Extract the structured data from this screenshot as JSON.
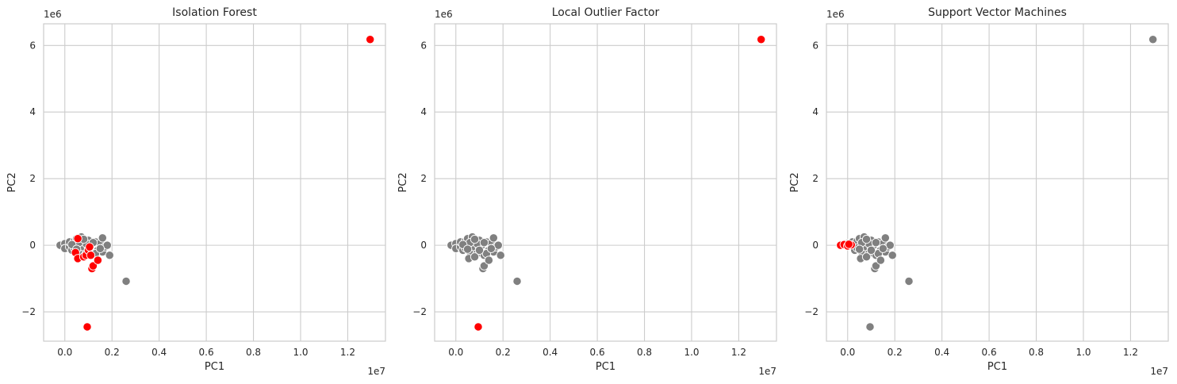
{
  "chart_data": [
    {
      "type": "scatter",
      "title": "Isolation Forest",
      "xlabel": "PC1",
      "ylabel": "PC2",
      "x_offset_label": "1e7",
      "y_offset_label": "1e6",
      "xlim": [
        -0.09,
        1.36
      ],
      "ylim": [
        -2.88,
        6.65
      ],
      "xticks": [
        0.0,
        0.2,
        0.4,
        0.6,
        0.8,
        1.0,
        1.2
      ],
      "xtick_labels": [
        "0.0",
        "0.2",
        "0.4",
        "0.6",
        "0.8",
        "1.0",
        "1.2"
      ],
      "yticks": [
        -2,
        0,
        2,
        4,
        6
      ],
      "ytick_labels": [
        "−2",
        "0",
        "2",
        "4",
        "6"
      ],
      "grid": true,
      "series": [
        {
          "color": "#808080",
          "points": [
            [
              -0.02,
              0.0
            ],
            [
              0.0,
              0.05
            ],
            [
              0.0,
              -0.1
            ],
            [
              0.02,
              -0.05
            ],
            [
              0.02,
              0.1
            ],
            [
              0.03,
              -0.15
            ],
            [
              0.04,
              0.12
            ],
            [
              0.04,
              -0.08
            ],
            [
              0.05,
              0.2
            ],
            [
              0.06,
              -0.2
            ],
            [
              0.07,
              0.0
            ],
            [
              0.07,
              0.25
            ],
            [
              0.08,
              -0.05
            ],
            [
              0.09,
              -0.25
            ],
            [
              0.1,
              0.15
            ],
            [
              0.1,
              -0.1
            ],
            [
              0.11,
              0.0
            ],
            [
              0.12,
              -0.3
            ],
            [
              0.13,
              0.1
            ],
            [
              0.14,
              -0.15
            ],
            [
              0.15,
              0.05
            ],
            [
              0.16,
              -0.2
            ],
            [
              0.17,
              -0.05
            ],
            [
              0.18,
              0.0
            ],
            [
              0.09,
              0.05
            ],
            [
              0.06,
              0.08
            ],
            [
              0.03,
              0.02
            ],
            [
              0.05,
              -0.12
            ],
            [
              0.08,
              0.18
            ],
            [
              0.12,
              0.08
            ],
            [
              0.13,
              -0.25
            ],
            [
              0.15,
              -0.1
            ],
            [
              0.19,
              -0.3
            ],
            [
              0.16,
              0.22
            ],
            [
              0.26,
              -1.08
            ]
          ]
        },
        {
          "color": "#ff0000",
          "points": [
            [
              1.295,
              6.18
            ],
            [
              0.055,
              0.2
            ],
            [
              0.045,
              -0.22
            ],
            [
              0.055,
              -0.4
            ],
            [
              0.08,
              -0.35
            ],
            [
              0.09,
              -0.3
            ],
            [
              0.1,
              -0.15
            ],
            [
              0.105,
              -0.05
            ],
            [
              0.11,
              -0.3
            ],
            [
              0.115,
              -0.7
            ],
            [
              0.12,
              -0.62
            ],
            [
              0.14,
              -0.45
            ],
            [
              0.095,
              -2.45
            ]
          ]
        }
      ]
    },
    {
      "type": "scatter",
      "title": "Local Outlier Factor",
      "xlabel": "PC1",
      "ylabel": "PC2",
      "x_offset_label": "1e7",
      "y_offset_label": "1e6",
      "xlim": [
        -0.09,
        1.36
      ],
      "ylim": [
        -2.88,
        6.65
      ],
      "xticks": [
        0.0,
        0.2,
        0.4,
        0.6,
        0.8,
        1.0,
        1.2
      ],
      "xtick_labels": [
        "0.0",
        "0.2",
        "0.4",
        "0.6",
        "0.8",
        "1.0",
        "1.2"
      ],
      "yticks": [
        -2,
        0,
        2,
        4,
        6
      ],
      "ytick_labels": [
        "−2",
        "0",
        "2",
        "4",
        "6"
      ],
      "grid": true,
      "series": [
        {
          "color": "#808080",
          "points": [
            [
              -0.02,
              0.0
            ],
            [
              0.0,
              0.05
            ],
            [
              0.0,
              -0.1
            ],
            [
              0.02,
              -0.05
            ],
            [
              0.02,
              0.1
            ],
            [
              0.03,
              -0.15
            ],
            [
              0.04,
              0.12
            ],
            [
              0.04,
              -0.08
            ],
            [
              0.05,
              0.2
            ],
            [
              0.06,
              -0.2
            ],
            [
              0.07,
              0.0
            ],
            [
              0.07,
              0.25
            ],
            [
              0.08,
              -0.05
            ],
            [
              0.09,
              -0.25
            ],
            [
              0.1,
              0.15
            ],
            [
              0.1,
              -0.1
            ],
            [
              0.11,
              0.0
            ],
            [
              0.12,
              -0.3
            ],
            [
              0.13,
              0.1
            ],
            [
              0.14,
              -0.15
            ],
            [
              0.15,
              0.05
            ],
            [
              0.16,
              -0.2
            ],
            [
              0.17,
              -0.05
            ],
            [
              0.18,
              0.0
            ],
            [
              0.09,
              0.05
            ],
            [
              0.06,
              0.08
            ],
            [
              0.03,
              0.02
            ],
            [
              0.05,
              -0.12
            ],
            [
              0.08,
              0.18
            ],
            [
              0.12,
              0.08
            ],
            [
              0.13,
              -0.25
            ],
            [
              0.15,
              -0.1
            ],
            [
              0.19,
              -0.3
            ],
            [
              0.16,
              0.22
            ],
            [
              0.055,
              -0.4
            ],
            [
              0.08,
              -0.35
            ],
            [
              0.1,
              -0.15
            ],
            [
              0.115,
              -0.7
            ],
            [
              0.12,
              -0.62
            ],
            [
              0.14,
              -0.45
            ],
            [
              0.26,
              -1.08
            ]
          ]
        },
        {
          "color": "#ff0000",
          "points": [
            [
              1.295,
              6.18
            ],
            [
              0.095,
              -2.45
            ]
          ]
        }
      ]
    },
    {
      "type": "scatter",
      "title": "Support Vector Machines",
      "xlabel": "PC1",
      "ylabel": "PC2",
      "x_offset_label": "1e7",
      "y_offset_label": "1e6",
      "xlim": [
        -0.09,
        1.36
      ],
      "ylim": [
        -2.88,
        6.65
      ],
      "xticks": [
        0.0,
        0.2,
        0.4,
        0.6,
        0.8,
        1.0,
        1.2
      ],
      "xtick_labels": [
        "0.0",
        "0.2",
        "0.4",
        "0.6",
        "0.8",
        "1.0",
        "1.2"
      ],
      "yticks": [
        -2,
        0,
        2,
        4,
        6
      ],
      "ytick_labels": [
        "−2",
        "0",
        "2",
        "4",
        "6"
      ],
      "grid": true,
      "series": [
        {
          "color": "#808080",
          "points": [
            [
              0.0,
              0.05
            ],
            [
              0.02,
              -0.05
            ],
            [
              0.02,
              0.1
            ],
            [
              0.03,
              -0.15
            ],
            [
              0.04,
              0.12
            ],
            [
              0.04,
              -0.08
            ],
            [
              0.05,
              0.2
            ],
            [
              0.06,
              -0.2
            ],
            [
              0.07,
              0.0
            ],
            [
              0.07,
              0.25
            ],
            [
              0.08,
              -0.05
            ],
            [
              0.09,
              -0.25
            ],
            [
              0.1,
              0.15
            ],
            [
              0.1,
              -0.1
            ],
            [
              0.11,
              0.0
            ],
            [
              0.12,
              -0.3
            ],
            [
              0.13,
              0.1
            ],
            [
              0.14,
              -0.15
            ],
            [
              0.15,
              0.05
            ],
            [
              0.16,
              -0.2
            ],
            [
              0.17,
              -0.05
            ],
            [
              0.18,
              0.0
            ],
            [
              0.09,
              0.05
            ],
            [
              0.06,
              0.08
            ],
            [
              0.05,
              -0.12
            ],
            [
              0.08,
              0.18
            ],
            [
              0.12,
              0.08
            ],
            [
              0.13,
              -0.25
            ],
            [
              0.15,
              -0.1
            ],
            [
              0.19,
              -0.3
            ],
            [
              0.16,
              0.22
            ],
            [
              0.055,
              -0.4
            ],
            [
              0.08,
              -0.35
            ],
            [
              0.1,
              -0.15
            ],
            [
              0.115,
              -0.7
            ],
            [
              0.12,
              -0.62
            ],
            [
              0.14,
              -0.45
            ],
            [
              0.26,
              -1.08
            ],
            [
              0.095,
              -2.45
            ],
            [
              1.295,
              6.18
            ]
          ]
        },
        {
          "color": "#ff0000",
          "points": [
            [
              -0.03,
              0.0
            ],
            [
              -0.015,
              0.02
            ],
            [
              0.0,
              -0.02
            ],
            [
              0.015,
              0.01
            ],
            [
              0.005,
              0.03
            ]
          ]
        }
      ]
    }
  ]
}
